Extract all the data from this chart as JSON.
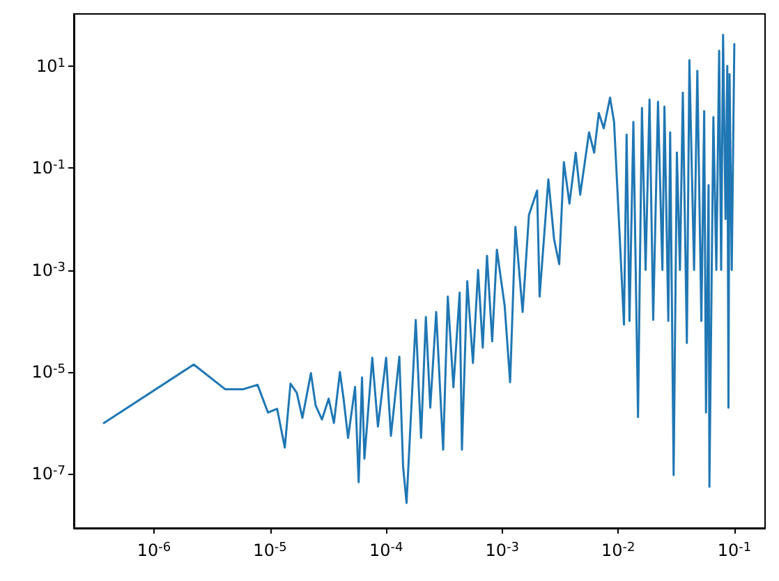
{
  "chart_data": {
    "type": "line",
    "log": "xy",
    "grid": false,
    "marker": "none",
    "line_style": "solid",
    "xlim": [
      2.04e-07,
      0.184
    ],
    "ylim": [
      8.7e-09,
      105
    ],
    "xticks": [
      {
        "value": 1e-06,
        "label": "10$^{-6}$"
      },
      {
        "value": 1e-05,
        "label": "10$^{-5}$"
      },
      {
        "value": 0.0001,
        "label": "10$^{-4}$"
      },
      {
        "value": 0.001,
        "label": "10$^{-3}$"
      },
      {
        "value": 0.01,
        "label": "10$^{-2}$"
      },
      {
        "value": 0.1,
        "label": "10$^{-1}$"
      }
    ],
    "yticks": [
      {
        "value": 1e-07,
        "label": "10$^{-7}$"
      },
      {
        "value": 1e-05,
        "label": "10$^{-5}$"
      },
      {
        "value": 0.001,
        "label": "10$^{-3}$"
      },
      {
        "value": 0.1,
        "label": "10$^{-1}$"
      },
      {
        "value": 10,
        "label": "10$^{1}$"
      }
    ],
    "series": [
      {
        "color": "#1f77b4",
        "x": [
          3.7e-07,
          2.2e-06,
          4.1e-06,
          5.9e-06,
          7.8e-06,
          9.6e-06,
          1.15e-05,
          1.34e-05,
          1.5e-05,
          1.7e-05,
          1.9e-05,
          2.25e-05,
          2.47e-05,
          2.8e-05,
          3.2e-05,
          3.55e-05,
          4e-05,
          4.3e-05,
          4.7e-05,
          5.4e-05,
          5.8e-05,
          6.2e-05,
          6.5e-05,
          7.6e-05,
          8.5e-05,
          0.0001,
          0.00011,
          0.00013,
          0.00014,
          0.00015,
          0.00018,
          0.0002,
          0.00022,
          0.00024,
          0.00027,
          0.00031,
          0.00034,
          0.00038,
          0.00043,
          0.00045,
          0.0005,
          0.00056,
          0.00062,
          0.00068,
          0.00074,
          0.00082,
          0.0009,
          0.00105,
          0.00117,
          0.0013,
          0.0015,
          0.0017,
          0.002,
          0.0021,
          0.0025,
          0.0028,
          0.0031,
          0.0034,
          0.0038,
          0.0043,
          0.0047,
          0.0056,
          0.0062,
          0.0068,
          0.0075,
          0.0085,
          0.0092,
          0.0102,
          0.0112,
          0.0118,
          0.0125,
          0.0135,
          0.0148,
          0.016,
          0.0172,
          0.0186,
          0.02,
          0.022,
          0.024,
          0.025,
          0.027,
          0.028,
          0.03,
          0.032,
          0.034,
          0.036,
          0.039,
          0.041,
          0.045,
          0.048,
          0.052,
          0.055,
          0.057,
          0.06,
          0.061,
          0.066,
          0.07,
          0.074,
          0.077,
          0.08,
          0.084,
          0.087,
          0.089,
          0.091,
          0.095,
          0.1
        ],
        "values": [
          1e-06,
          1.4e-05,
          4.6e-06,
          4.6e-06,
          5.6e-06,
          1.6e-06,
          1.9e-06,
          3.3e-07,
          5.9e-06,
          3.9e-06,
          1.26e-06,
          9.5e-06,
          2.2e-06,
          1.17e-06,
          3e-06,
          1e-06,
          1e-05,
          3e-06,
          5.1e-07,
          5.1e-06,
          6.9e-08,
          7.8e-06,
          2e-07,
          1.9e-05,
          8.5e-07,
          1.9e-05,
          5.6e-07,
          2e-05,
          1.4e-07,
          2.7e-08,
          0.000105,
          5.1e-07,
          0.00012,
          2e-06,
          0.00015,
          3e-07,
          0.0003,
          5e-06,
          0.00036,
          3e-07,
          0.0006,
          1.5e-05,
          0.001,
          3e-05,
          0.0019,
          4e-05,
          0.0025,
          0.0002,
          6.3e-06,
          0.007,
          0.00015,
          0.012,
          0.036,
          0.0003,
          0.06,
          0.004,
          0.0013,
          0.13,
          0.02,
          0.2,
          0.03,
          0.5,
          0.2,
          1.2,
          0.6,
          2.4,
          0.8,
          0.0069,
          8.5e-05,
          0.45,
          0.0001,
          0.8,
          1.3e-06,
          1.5,
          0.001,
          2.2,
          0.000105,
          2.0,
          0.001,
          1.6,
          0.0001,
          0.5,
          9.5e-08,
          0.2,
          0.001,
          3,
          3.7e-05,
          13,
          0.001,
          8,
          0.0001,
          1.3,
          1.6e-06,
          0.046,
          5.6e-08,
          1,
          0.001,
          20,
          0.001,
          41,
          0.01,
          10,
          2e-06,
          6.9,
          0.001,
          27
        ]
      }
    ]
  }
}
